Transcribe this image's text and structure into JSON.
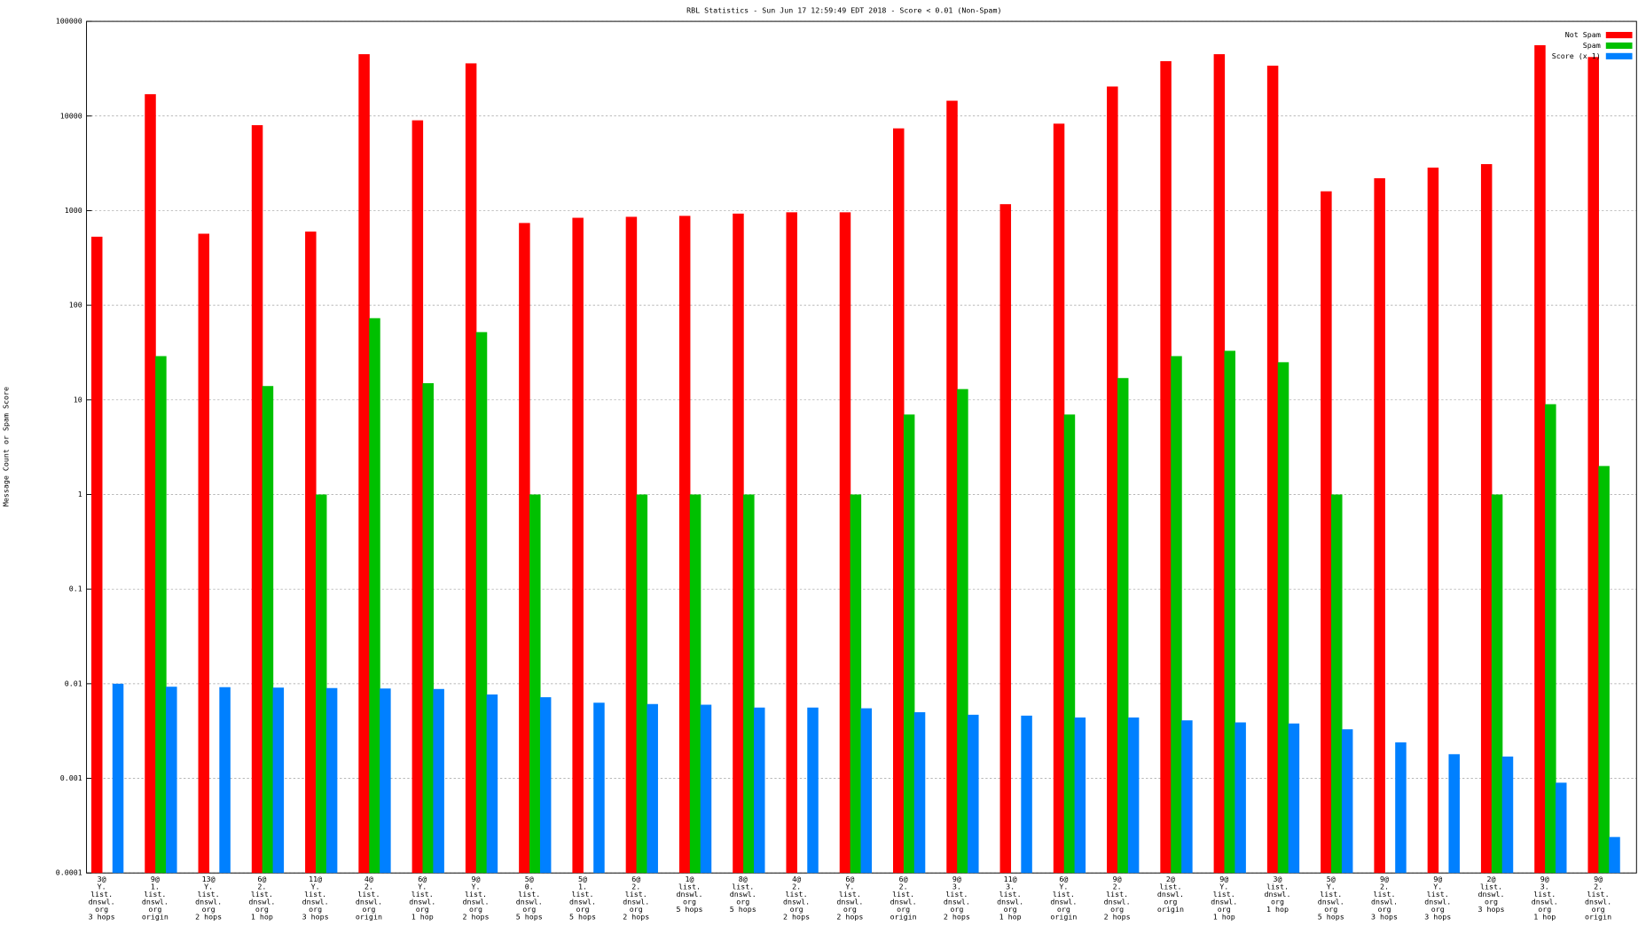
{
  "chart_data": {
    "type": "bar",
    "title": "RBL Statistics - Sun Jun 17 12:59:49 EDT 2018 - Score < 0.01 (Non-Spam)",
    "y_label": "Message Count or Spam Score",
    "log_scale": true,
    "grid": true,
    "legend_position": "top-right",
    "ylim": [
      0.0001,
      100000
    ],
    "yticks": [
      100000,
      10000,
      1000,
      100,
      10,
      1,
      0.1,
      0.01,
      0.001,
      0.0001
    ],
    "categories": [
      [
        "3@",
        "Y.",
        "list.",
        "dnswl.",
        "org",
        "3 hops"
      ],
      [
        "9@",
        "1.",
        "list.",
        "dnswl.",
        "org",
        "origin"
      ],
      [
        "13@",
        "Y.",
        "list.",
        "dnswl.",
        "org",
        "2 hops"
      ],
      [
        "6@",
        "2.",
        "list.",
        "dnswl.",
        "org",
        "1 hop"
      ],
      [
        "11@",
        "Y.",
        "list.",
        "dnswl.",
        "org",
        "3 hops"
      ],
      [
        "4@",
        "2.",
        "list.",
        "dnswl.",
        "org",
        "origin"
      ],
      [
        "6@",
        "Y.",
        "list.",
        "dnswl.",
        "org",
        "1 hop"
      ],
      [
        "9@",
        "Y.",
        "list.",
        "dnswl.",
        "org",
        "2 hops"
      ],
      [
        "5@",
        "0.",
        "list.",
        "dnswl.",
        "org",
        "5 hops"
      ],
      [
        "5@",
        "1.",
        "list.",
        "dnswl.",
        "org",
        "5 hops"
      ],
      [
        "6@",
        "2.",
        "list.",
        "dnswl.",
        "org",
        "2 hops"
      ],
      [
        "1@",
        "list.",
        "dnswl.",
        "org",
        "5 hops"
      ],
      [
        "8@",
        "list.",
        "dnswl.",
        "org",
        "5 hops"
      ],
      [
        "4@",
        "2.",
        "list.",
        "dnswl.",
        "org",
        "2 hops"
      ],
      [
        "6@",
        "Y.",
        "list.",
        "dnswl.",
        "org",
        "2 hops"
      ],
      [
        "6@",
        "2.",
        "list.",
        "dnswl.",
        "org",
        "origin"
      ],
      [
        "9@",
        "3.",
        "list.",
        "dnswl.",
        "org",
        "2 hops"
      ],
      [
        "11@",
        "3.",
        "list.",
        "dnswl.",
        "org",
        "1 hop"
      ],
      [
        "6@",
        "Y.",
        "list.",
        "dnswl.",
        "org",
        "origin"
      ],
      [
        "9@",
        "2.",
        "list.",
        "dnswl.",
        "org",
        "2 hops"
      ],
      [
        "2@",
        "list.",
        "dnswl.",
        "org",
        "origin"
      ],
      [
        "9@",
        "Y.",
        "list.",
        "dnswl.",
        "org",
        "1 hop"
      ],
      [
        "3@",
        "list.",
        "dnswl.",
        "org",
        "1 hop"
      ],
      [
        "5@",
        "Y.",
        "list.",
        "dnswl.",
        "org",
        "5 hops"
      ],
      [
        "9@",
        "2.",
        "list.",
        "dnswl.",
        "org",
        "3 hops"
      ],
      [
        "9@",
        "Y.",
        "list.",
        "dnswl.",
        "org",
        "3 hops"
      ],
      [
        "2@",
        "list.",
        "dnswl.",
        "org",
        "3 hops"
      ],
      [
        "9@",
        "3.",
        "list.",
        "dnswl.",
        "org",
        "1 hop"
      ],
      [
        "9@",
        "2.",
        "list.",
        "dnswl.",
        "org",
        "origin"
      ]
    ],
    "series": [
      {
        "name": "Not Spam",
        "color": "#ff0000",
        "values": [
          530,
          17000,
          570,
          8000,
          600,
          45000,
          9000,
          36000,
          740,
          840,
          860,
          880,
          930,
          960,
          960,
          7400,
          14500,
          1170,
          8300,
          20500,
          38000,
          45000,
          34000,
          1600,
          2200,
          2850,
          3100,
          56000,
          42000
        ]
      },
      {
        "name": "Spam",
        "color": "#00c000",
        "values": [
          null,
          29,
          null,
          14,
          1,
          73,
          15,
          52,
          1,
          null,
          1,
          1,
          1,
          null,
          1,
          7,
          13,
          null,
          7,
          17,
          29,
          33,
          25,
          1,
          null,
          null,
          1,
          9,
          2
        ]
      },
      {
        "name": "Score (x 1)",
        "color": "#0080ff",
        "values": [
          0.01,
          0.0093,
          0.0092,
          0.0091,
          0.009,
          0.0089,
          0.0088,
          0.0077,
          0.0072,
          0.0063,
          0.0061,
          0.006,
          0.0056,
          0.0056,
          0.0055,
          0.005,
          0.0047,
          0.0046,
          0.0044,
          0.0044,
          0.0041,
          0.0039,
          0.0038,
          0.0033,
          0.0024,
          0.0018,
          0.0017,
          0.0009,
          0.00024
        ]
      }
    ]
  }
}
